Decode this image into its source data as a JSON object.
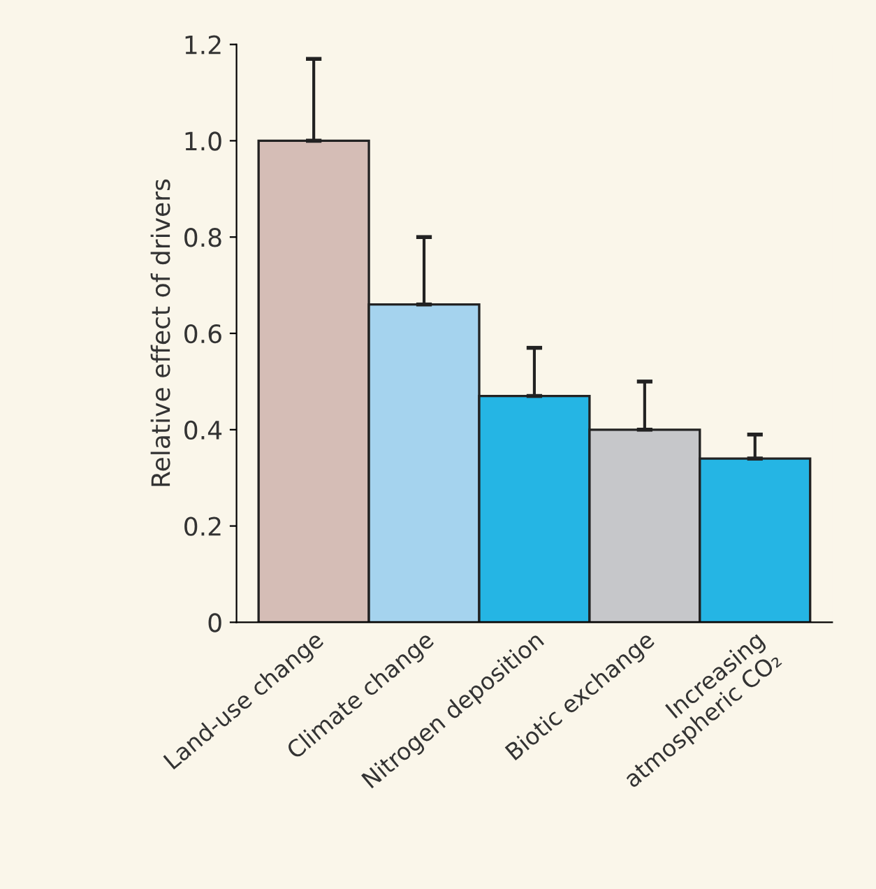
{
  "chart_data": {
    "type": "bar",
    "ylabel": "Relative effect of drivers",
    "categories": [
      "Land-use change",
      "Climate change",
      "Nitrogen deposition",
      "Biotic exchange",
      "Increasing\natmospheric CO₂"
    ],
    "values": [
      1.0,
      0.66,
      0.47,
      0.4,
      0.34
    ],
    "errors": [
      [
        1.0,
        1.17
      ],
      [
        0.66,
        0.8
      ],
      [
        0.47,
        0.57
      ],
      [
        0.4,
        0.5
      ],
      [
        0.34,
        0.39
      ]
    ],
    "colors": [
      "#d5bdb6",
      "#a5d3ee",
      "#25b5e4",
      "#c6c7ca",
      "#25b5e4"
    ],
    "ylim": [
      0,
      1.2
    ],
    "yticks": [
      0,
      0.2,
      0.4,
      0.6,
      0.8,
      {
        "value": 1.0,
        "label": "1.0"
      },
      1.2
    ],
    "grid": false
  }
}
